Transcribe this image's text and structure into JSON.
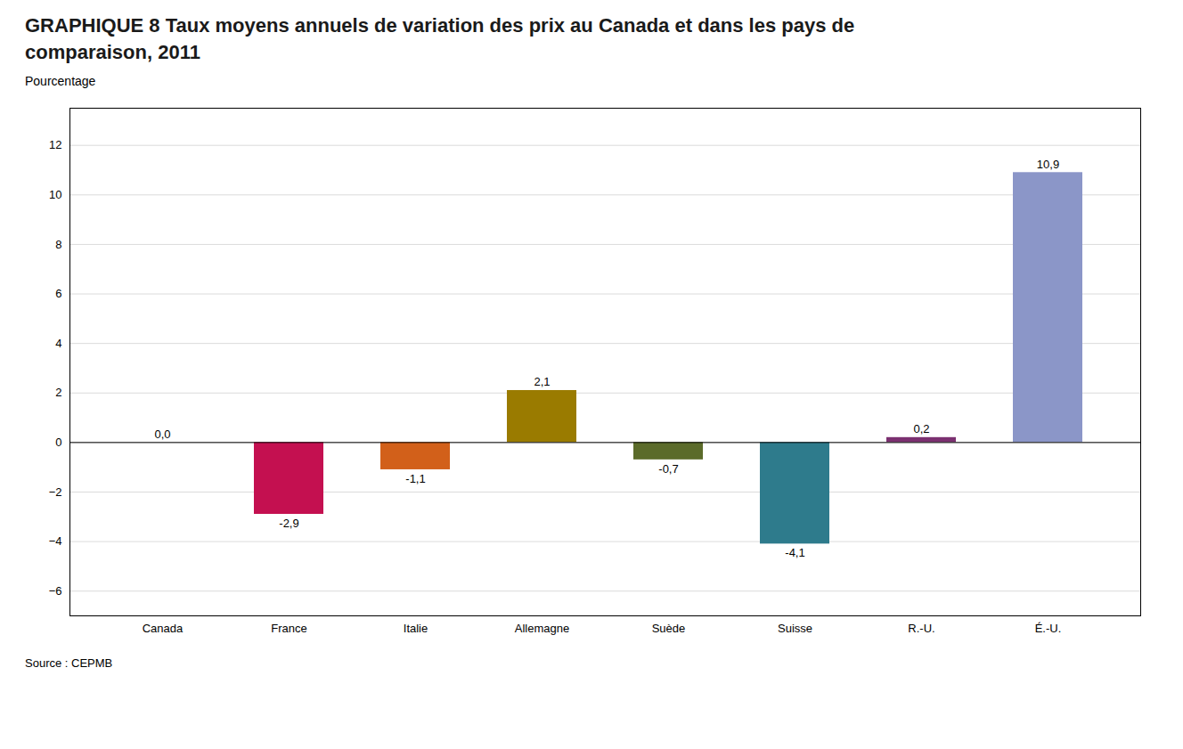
{
  "chart_data": {
    "type": "bar",
    "title": "GRAPHIQUE 8 Taux moyens annuels de variation des prix au Canada et dans les pays de comparaison, 2011",
    "ylabel": "Pourcentage",
    "source": "Source : CEPMB",
    "categories": [
      "Canada",
      "France",
      "Italie",
      "Allemagne",
      "Suède",
      "Suisse",
      "R.-U.",
      "É.-U."
    ],
    "values": [
      0.0,
      -2.9,
      -1.1,
      2.1,
      -0.7,
      -4.1,
      0.2,
      10.9
    ],
    "value_labels": [
      "0,0",
      "-2,9",
      "-1,1",
      "2,1",
      "-0,7",
      "-4,1",
      "0,2",
      "10,9"
    ],
    "colors": [
      "#C0C0C0",
      "#C41050",
      "#D2601A",
      "#9A7B00",
      "#5B6B2A",
      "#2E7B8C",
      "#7B3070",
      "#8B96C8"
    ],
    "ylim": [
      -7,
      13.5
    ],
    "yticks": [
      -6,
      -4,
      -2,
      0,
      2,
      4,
      6,
      8,
      10,
      12
    ],
    "grid": true,
    "data_labels": true
  }
}
